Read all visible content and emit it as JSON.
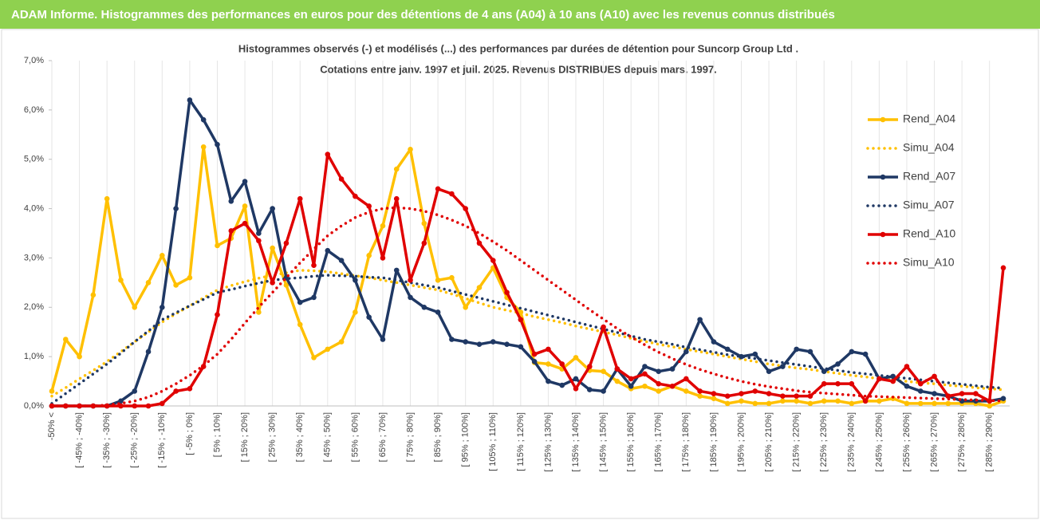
{
  "chart_data": {
    "type": "line",
    "title": "ADAM Informe. Histogrammes des performances en euros pour des détentions de 4 ans (A04) à 10 ans (A10) avec les revenus connus distribués",
    "subtitle": [
      "Histogrammes observés (-) et modélisés (...) des performances par durées de détention pour Suncorp Group Ltd .",
      "Cotations entre janv. 1997 et juil. 2025. Revenus DISTRIBUES depuis mars. 1997."
    ],
    "categories": [
      "-50% <",
      null,
      "[ -45% ; -40%]",
      null,
      "[ -35% ; -30%]",
      null,
      "[ -25% ; -20%]",
      null,
      "[ -15% ; -10%]",
      null,
      "[ -5% ; 0%]",
      null,
      "[ 5% ; 10%]",
      null,
      "[ 15% ; 20%]",
      null,
      "[ 25% ; 30%]",
      null,
      "[ 35% ; 40%]",
      null,
      "[ 45% ; 50%]",
      null,
      "[ 55% ; 60%]",
      null,
      "[ 65% ; 70%]",
      null,
      "[ 75% ; 80%]",
      null,
      "[ 85% ; 90%]",
      null,
      "[ 95% ; 100%]",
      null,
      "[ 105% ; 110%]",
      null,
      "[ 115% ; 120%]",
      null,
      "[ 125% ; 130%]",
      null,
      "[ 135% ; 140%]",
      null,
      "[ 145% ; 150%]",
      null,
      "[ 155% ; 160%]",
      null,
      "[ 165% ; 170%]",
      null,
      "[ 175% ; 180%]",
      null,
      "[ 185% ; 190%]",
      null,
      "[ 195% ; 200%]",
      null,
      "[ 205% ; 210%]",
      null,
      "[ 215% ; 220%]",
      null,
      "[ 225% ; 230%]",
      null,
      "[ 235% ; 240%]",
      null,
      "[ 245% ; 250%]",
      null,
      "[ 255% ; 260%]",
      null,
      "[ 265% ; 270%]",
      null,
      "[ 275% ; 280%]",
      null,
      "[ 285% ; 290%]",
      null
    ],
    "series": [
      {
        "name": "Rend_A04",
        "color": "#ffc000",
        "style": "solid",
        "marker": true,
        "values": [
          0.3,
          1.35,
          1.0,
          2.25,
          4.2,
          2.55,
          2.0,
          2.5,
          3.05,
          2.45,
          2.6,
          5.25,
          3.25,
          3.4,
          4.05,
          1.9,
          3.2,
          2.45,
          1.65,
          0.98,
          1.15,
          1.3,
          1.9,
          3.05,
          3.65,
          4.8,
          5.2,
          3.7,
          2.55,
          2.6,
          2.0,
          2.4,
          2.8,
          2.2,
          1.9,
          0.88,
          0.85,
          0.75,
          0.98,
          0.72,
          0.7,
          0.5,
          0.35,
          0.4,
          0.3,
          0.4,
          0.3,
          0.2,
          0.15,
          0.05,
          0.1,
          0.05,
          0.05,
          0.1,
          0.1,
          0.05,
          0.1,
          0.1,
          0.05,
          0.1,
          0.1,
          0.15,
          0.05,
          0.05,
          0.05,
          0.05,
          0.05,
          0.05,
          0.0,
          0.1
        ]
      },
      {
        "name": "Simu_A04",
        "color": "#ffc000",
        "style": "dotted",
        "marker": false,
        "values": [
          0.2,
          0.37,
          0.55,
          0.72,
          0.9,
          1.1,
          1.3,
          1.5,
          1.7,
          1.87,
          2.03,
          2.19,
          2.35,
          2.44,
          2.52,
          2.59,
          2.65,
          2.7,
          2.75,
          2.74,
          2.72,
          2.68,
          2.64,
          2.6,
          2.55,
          2.5,
          2.45,
          2.4,
          2.35,
          2.27,
          2.18,
          2.09,
          2.0,
          1.94,
          1.88,
          1.81,
          1.75,
          1.69,
          1.62,
          1.56,
          1.5,
          1.44,
          1.37,
          1.31,
          1.25,
          1.2,
          1.15,
          1.1,
          1.05,
          1.0,
          0.95,
          0.9,
          0.85,
          0.81,
          0.77,
          0.74,
          0.7,
          0.66,
          0.62,
          0.59,
          0.55,
          0.52,
          0.5,
          0.47,
          0.45,
          0.42,
          0.4,
          0.37,
          0.35,
          0.33
        ]
      },
      {
        "name": "Rend_A07",
        "color": "#1f3864",
        "style": "solid",
        "marker": true,
        "values": [
          0,
          0,
          0,
          0,
          0,
          0.1,
          0.3,
          1.1,
          2.0,
          4.0,
          6.2,
          5.8,
          5.3,
          4.15,
          4.55,
          3.5,
          4.0,
          2.6,
          2.1,
          2.2,
          3.15,
          2.95,
          2.55,
          1.8,
          1.35,
          2.75,
          2.2,
          2.0,
          1.9,
          1.35,
          1.3,
          1.25,
          1.3,
          1.25,
          1.2,
          0.9,
          0.5,
          0.42,
          0.55,
          0.33,
          0.3,
          0.75,
          0.4,
          0.8,
          0.7,
          0.75,
          1.1,
          1.75,
          1.3,
          1.15,
          1.0,
          1.05,
          0.7,
          0.8,
          1.15,
          1.1,
          0.7,
          0.85,
          1.1,
          1.05,
          0.55,
          0.6,
          0.4,
          0.3,
          0.25,
          0.2,
          0.1,
          0.1,
          0.1,
          0.15
        ]
      },
      {
        "name": "Simu_A07",
        "color": "#1f3864",
        "style": "dotted",
        "marker": false,
        "values": [
          0.05,
          0.25,
          0.45,
          0.65,
          0.85,
          1.07,
          1.3,
          1.52,
          1.75,
          1.89,
          2.03,
          2.16,
          2.3,
          2.36,
          2.43,
          2.49,
          2.55,
          2.58,
          2.6,
          2.63,
          2.65,
          2.64,
          2.63,
          2.61,
          2.6,
          2.55,
          2.5,
          2.45,
          2.4,
          2.33,
          2.26,
          2.19,
          2.12,
          2.05,
          1.98,
          1.91,
          1.84,
          1.77,
          1.7,
          1.63,
          1.56,
          1.49,
          1.42,
          1.35,
          1.3,
          1.25,
          1.19,
          1.14,
          1.09,
          1.04,
          1.0,
          0.96,
          0.92,
          0.88,
          0.84,
          0.8,
          0.76,
          0.72,
          0.68,
          0.65,
          0.62,
          0.59,
          0.56,
          0.53,
          0.5,
          0.47,
          0.44,
          0.41,
          0.38,
          0.36
        ]
      },
      {
        "name": "Rend_A10",
        "color": "#e00000",
        "style": "solid",
        "marker": true,
        "values": [
          0,
          0,
          0,
          0,
          0,
          0,
          0,
          0,
          0.05,
          0.3,
          0.35,
          0.8,
          1.85,
          3.55,
          3.7,
          3.35,
          2.5,
          3.3,
          4.2,
          2.85,
          5.1,
          4.6,
          4.25,
          4.05,
          3.0,
          4.2,
          2.55,
          3.3,
          4.4,
          4.3,
          4.0,
          3.3,
          2.95,
          2.3,
          1.75,
          1.05,
          1.15,
          0.85,
          0.35,
          0.8,
          1.6,
          0.75,
          0.55,
          0.65,
          0.45,
          0.4,
          0.55,
          0.3,
          0.25,
          0.2,
          0.25,
          0.3,
          0.25,
          0.2,
          0.2,
          0.2,
          0.45,
          0.45,
          0.45,
          0.1,
          0.55,
          0.5,
          0.8,
          0.45,
          0.6,
          0.2,
          0.25,
          0.25,
          0.1,
          2.8
        ]
      },
      {
        "name": "Simu_A10",
        "color": "#e00000",
        "style": "dotted",
        "marker": false,
        "values": [
          0,
          0,
          0,
          0,
          0.02,
          0.05,
          0.1,
          0.18,
          0.3,
          0.45,
          0.62,
          0.82,
          1.05,
          1.35,
          1.68,
          2.0,
          2.3,
          2.6,
          2.9,
          3.18,
          3.45,
          3.65,
          3.82,
          3.93,
          4.0,
          4.02,
          4.0,
          3.95,
          3.87,
          3.77,
          3.65,
          3.5,
          3.33,
          3.15,
          2.95,
          2.75,
          2.55,
          2.35,
          2.15,
          1.95,
          1.76,
          1.57,
          1.4,
          1.24,
          1.09,
          0.96,
          0.84,
          0.74,
          0.65,
          0.57,
          0.5,
          0.44,
          0.39,
          0.35,
          0.31,
          0.28,
          0.26,
          0.24,
          0.22,
          0.2,
          0.19,
          0.18,
          0.17,
          0.16,
          0.15,
          0.14,
          0.13,
          0.12,
          0.11,
          0.1
        ]
      }
    ],
    "ylim": [
      0,
      7
    ],
    "yticks": [
      {
        "value": 0,
        "label": "0,0%"
      },
      {
        "value": 1,
        "label": "1,0%"
      },
      {
        "value": 2,
        "label": "2,0%"
      },
      {
        "value": 3,
        "label": "3,0%"
      },
      {
        "value": 4,
        "label": "4,0%"
      },
      {
        "value": 5,
        "label": "5,0%"
      },
      {
        "value": 6,
        "label": "6,0%"
      },
      {
        "value": 7,
        "label": "7,0%"
      }
    ],
    "xgrid": true,
    "legend": "right"
  }
}
